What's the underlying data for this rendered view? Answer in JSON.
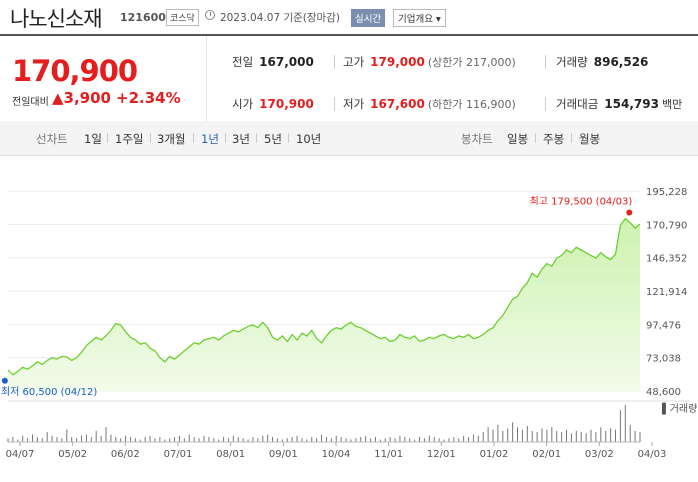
{
  "header": {
    "title": "나노신소재",
    "code": "121600",
    "market": "코스닥",
    "date": "2023.04.07 기준(장마감)",
    "realtime_btn": "실시간",
    "company_btn": "기업개요 ▾"
  },
  "summary": {
    "price": "170,900",
    "change_label": "전일대비",
    "change_val": "▲3,900",
    "change_pct": "+2.34%",
    "stats": {
      "prev": {
        "label": "전일",
        "value": "167,000"
      },
      "high": {
        "label": "고가",
        "value": "179,000",
        "sub": "(상한가 217,000)"
      },
      "volume": {
        "label": "거래량",
        "value": "896,526"
      },
      "open": {
        "label": "시가",
        "value": "170,900"
      },
      "low": {
        "label": "저가",
        "value": "167,600",
        "sub": "(하한가 116,900)"
      },
      "amount": {
        "label": "거래대금",
        "value": "154,793",
        "unit": "백만"
      }
    }
  },
  "toolbar": {
    "line_label": "선차트",
    "periods": [
      "1일",
      "1주일",
      "3개월",
      "1년",
      "3년",
      "5년",
      "10년"
    ],
    "active_period": "1년",
    "candle_label": "봉차트",
    "candles": [
      "일봉",
      "주봉",
      "월봉"
    ]
  },
  "colors": {
    "up": "#e41e1e",
    "line": "#6ccf2f",
    "fill": "#d8f4c4",
    "low": "#1a5fc2"
  },
  "chart_data": {
    "type": "area",
    "y_ticks": [
      "195,228",
      "170,790",
      "146,352",
      "121,914",
      "97,476",
      "73,038",
      "48,600"
    ],
    "ylim": [
      48600,
      195228
    ],
    "x_ticks": [
      "04/07",
      "05/02",
      "06/02",
      "07/01",
      "08/01",
      "09/01",
      "10/04",
      "11/01",
      "12/01",
      "01/02",
      "02/01",
      "03/02",
      "04/03"
    ],
    "high_label": "최고 179,500 (04/03)",
    "low_label": "최저 60,500 (04/12)",
    "volume_label": "거래량",
    "high": 179500,
    "low": 60500,
    "prices": [
      64000,
      60500,
      63000,
      66000,
      64500,
      67000,
      70000,
      68000,
      71000,
      73000,
      72000,
      74000,
      73500,
      71000,
      73000,
      77000,
      82000,
      85000,
      88000,
      86000,
      89000,
      93000,
      98000,
      97000,
      92000,
      88000,
      86000,
      83000,
      84000,
      80000,
      78000,
      73000,
      70000,
      74000,
      72000,
      75000,
      78000,
      81000,
      84000,
      83000,
      86000,
      87000,
      88000,
      86000,
      89000,
      91000,
      93000,
      92000,
      94000,
      96000,
      97000,
      95000,
      99000,
      95000,
      88000,
      86000,
      89000,
      85000,
      90000,
      86000,
      91000,
      89000,
      93000,
      87000,
      84000,
      89000,
      93000,
      95000,
      94000,
      97000,
      99000,
      96000,
      95000,
      93000,
      91000,
      89000,
      87000,
      88000,
      85000,
      86000,
      90000,
      88000,
      87000,
      89000,
      85000,
      86000,
      88000,
      87000,
      89000,
      90000,
      88000,
      87000,
      89000,
      88000,
      90000,
      87000,
      88000,
      90000,
      93000,
      95000,
      100000,
      104000,
      110000,
      116000,
      118000,
      124000,
      128000,
      135000,
      132000,
      138000,
      142000,
      140000,
      146000,
      148000,
      152000,
      150000,
      154000,
      152000,
      150000,
      148000,
      146000,
      150000,
      147000,
      145000,
      149000,
      170000,
      175000,
      172000,
      168000,
      171000
    ],
    "volumes": [
      3,
      4,
      2,
      5,
      3,
      6,
      4,
      3,
      8,
      5,
      4,
      3,
      10,
      4,
      3,
      5,
      6,
      4,
      9,
      5,
      12,
      6,
      4,
      3,
      5,
      4,
      3,
      2,
      4,
      5,
      3,
      4,
      2,
      3,
      4,
      5,
      3,
      6,
      4,
      3,
      5,
      4,
      3,
      2,
      4,
      3,
      5,
      4,
      3,
      2,
      4,
      3,
      5,
      6,
      4,
      3,
      2,
      3,
      4,
      5,
      3,
      2,
      4,
      3,
      6,
      4,
      3,
      5,
      4,
      3,
      2,
      3,
      4,
      5,
      3,
      4,
      2,
      3,
      4,
      3,
      5,
      4,
      3,
      2,
      4,
      3,
      5,
      4,
      3,
      2,
      3,
      4,
      3,
      5,
      4,
      6,
      5,
      8,
      12,
      10,
      14,
      9,
      11,
      16,
      12,
      10,
      13,
      9,
      8,
      11,
      10,
      12,
      9,
      8,
      10,
      7,
      9,
      8,
      7,
      10,
      8,
      12,
      9,
      11,
      10,
      26,
      30,
      14,
      9,
      8
    ]
  }
}
